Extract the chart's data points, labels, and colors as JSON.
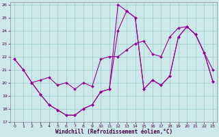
{
  "xlabel": "Windchill (Refroidissement éolien,°C)",
  "background_color": "#cce8e8",
  "grid_color": "#99cccc",
  "line_color": "#990099",
  "xlim": [
    -0.5,
    23.5
  ],
  "ylim": [
    17,
    26.2
  ],
  "xticks": [
    0,
    1,
    2,
    3,
    4,
    5,
    6,
    7,
    8,
    9,
    10,
    11,
    12,
    13,
    14,
    15,
    16,
    17,
    18,
    19,
    20,
    21,
    22,
    23
  ],
  "yticks": [
    17,
    18,
    19,
    20,
    21,
    22,
    23,
    24,
    25,
    26
  ],
  "line1_x": [
    0,
    1,
    2,
    3,
    4,
    5,
    6,
    7,
    8,
    9,
    10,
    11,
    12,
    13,
    14,
    15,
    16,
    17,
    18,
    19,
    20,
    21,
    22,
    23
  ],
  "line1_y": [
    21.8,
    21.0,
    20.0,
    19.1,
    18.3,
    17.9,
    17.5,
    17.5,
    18.0,
    18.3,
    19.3,
    19.5,
    26.0,
    25.5,
    25.0,
    19.5,
    20.2,
    19.8,
    20.5,
    23.5,
    24.3,
    23.7,
    22.3,
    21.0
  ],
  "line2_x": [
    0,
    1,
    2,
    3,
    4,
    5,
    6,
    7,
    8,
    9,
    10,
    11,
    12,
    13,
    14,
    15,
    16,
    17,
    18,
    19,
    20,
    21,
    22,
    23
  ],
  "line2_y": [
    21.8,
    21.0,
    20.0,
    20.2,
    20.4,
    19.8,
    20.0,
    19.5,
    20.0,
    19.7,
    21.8,
    22.0,
    22.0,
    22.5,
    23.0,
    23.2,
    22.2,
    22.0,
    23.5,
    24.2,
    24.3,
    23.7,
    22.3,
    20.1
  ],
  "line3_x": [
    2,
    3,
    4,
    5,
    6,
    7,
    8,
    9,
    10,
    11,
    12,
    13,
    14,
    15,
    16,
    17,
    18,
    19,
    20,
    21,
    22,
    23
  ],
  "line3_y": [
    20.0,
    19.1,
    18.3,
    17.9,
    17.5,
    17.5,
    18.0,
    18.3,
    19.3,
    19.5,
    24.0,
    25.5,
    25.0,
    19.5,
    20.2,
    19.8,
    20.5,
    23.5,
    24.3,
    23.7,
    22.3,
    20.1
  ]
}
